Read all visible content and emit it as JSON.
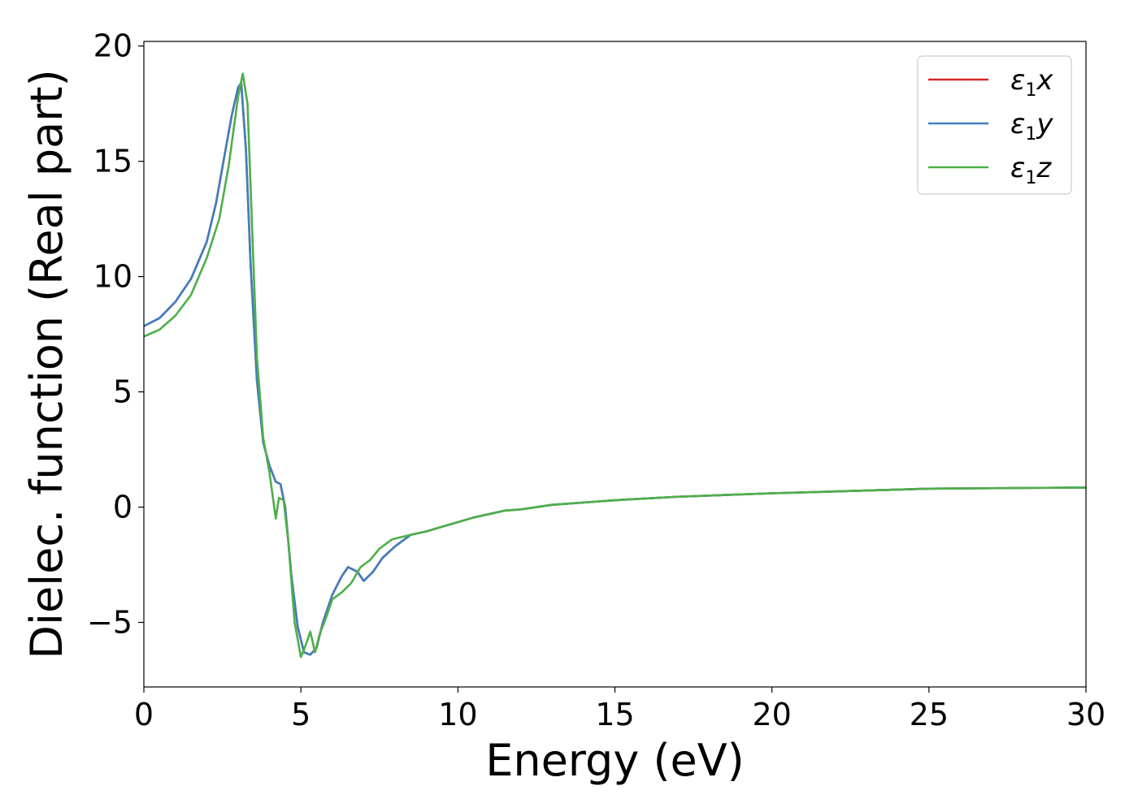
{
  "chart_data": {
    "type": "line",
    "xlabel": "Energy (eV)",
    "ylabel": "Dielec. function (Real part)",
    "xlim": [
      0,
      30
    ],
    "ylim": [
      -7.8,
      20.2
    ],
    "xticks": [
      0,
      5,
      10,
      15,
      20,
      25,
      30
    ],
    "xtick_labels": [
      "0",
      "5",
      "10",
      "15",
      "20",
      "25",
      "30"
    ],
    "yticks": [
      -5,
      0,
      5,
      10,
      15,
      20
    ],
    "ytick_labels": [
      "−5",
      "0",
      "5",
      "10",
      "15",
      "20"
    ],
    "grid": false,
    "legend_position": "top-right",
    "series": [
      {
        "key": "x",
        "legend_base": "ε",
        "legend_sub": "1",
        "legend_var": "x",
        "color": "#d62728",
        "x": [
          0,
          0.5,
          1,
          1.5,
          2,
          2.3,
          2.6,
          2.8,
          3.0,
          3.1,
          3.25,
          3.4,
          3.6,
          3.8,
          4.0,
          4.2,
          4.35,
          4.5,
          4.7,
          4.9,
          5.1,
          5.3,
          5.5,
          5.7,
          6.0,
          6.3,
          6.5,
          6.8,
          7.0,
          7.3,
          7.6,
          8.0,
          8.5,
          9.0,
          9.5,
          10,
          10.5,
          11,
          11.5,
          12,
          13,
          14,
          15,
          17,
          20,
          25,
          30
        ],
        "y": [
          7.85,
          8.2,
          8.9,
          9.9,
          11.5,
          13.2,
          15.5,
          17.0,
          18.2,
          18.4,
          15.5,
          10.5,
          5.5,
          2.8,
          1.8,
          1.1,
          1.0,
          0.0,
          -3.0,
          -5.2,
          -6.3,
          -6.4,
          -6.1,
          -5.0,
          -3.8,
          -3.0,
          -2.6,
          -2.8,
          -3.2,
          -2.8,
          -2.2,
          -1.7,
          -1.2,
          -1.05,
          -0.85,
          -0.65,
          -0.45,
          -0.3,
          -0.15,
          -0.1,
          0.1,
          0.2,
          0.3,
          0.45,
          0.6,
          0.8,
          0.85
        ]
      },
      {
        "key": "y",
        "legend_base": "ε",
        "legend_sub": "1",
        "legend_var": "y",
        "color": "#3f7fbf",
        "x": [
          0,
          0.5,
          1,
          1.5,
          2,
          2.3,
          2.6,
          2.8,
          3.0,
          3.1,
          3.25,
          3.4,
          3.6,
          3.8,
          4.0,
          4.2,
          4.35,
          4.5,
          4.7,
          4.9,
          5.1,
          5.3,
          5.5,
          5.7,
          6.0,
          6.3,
          6.5,
          6.8,
          7.0,
          7.3,
          7.6,
          8.0,
          8.5,
          9.0,
          9.5,
          10,
          10.5,
          11,
          11.5,
          12,
          13,
          14,
          15,
          17,
          20,
          25,
          30
        ],
        "y": [
          7.85,
          8.2,
          8.9,
          9.9,
          11.5,
          13.2,
          15.5,
          17.0,
          18.2,
          18.4,
          15.5,
          10.5,
          5.5,
          2.8,
          1.8,
          1.1,
          1.0,
          0.0,
          -3.0,
          -5.2,
          -6.3,
          -6.4,
          -6.1,
          -5.0,
          -3.8,
          -3.0,
          -2.6,
          -2.8,
          -3.2,
          -2.8,
          -2.2,
          -1.7,
          -1.2,
          -1.05,
          -0.85,
          -0.65,
          -0.45,
          -0.3,
          -0.15,
          -0.1,
          0.1,
          0.2,
          0.3,
          0.45,
          0.6,
          0.8,
          0.85
        ]
      },
      {
        "key": "z",
        "legend_base": "ε",
        "legend_sub": "1",
        "legend_var": "z",
        "color": "#4daf4a",
        "x": [
          0,
          0.5,
          1,
          1.5,
          2,
          2.4,
          2.7,
          3.0,
          3.15,
          3.3,
          3.45,
          3.6,
          3.8,
          4.0,
          4.2,
          4.3,
          4.45,
          4.6,
          4.8,
          5.0,
          5.15,
          5.3,
          5.45,
          5.6,
          5.8,
          6.0,
          6.3,
          6.6,
          6.9,
          7.2,
          7.5,
          7.9,
          8.5,
          9.0,
          9.5,
          10,
          10.5,
          11,
          11.5,
          12,
          13,
          14,
          15,
          17,
          20,
          25,
          30
        ],
        "y": [
          7.4,
          7.7,
          8.3,
          9.2,
          10.8,
          12.5,
          14.8,
          17.8,
          18.8,
          17.5,
          12.0,
          6.5,
          3.0,
          1.5,
          -0.5,
          0.4,
          0.3,
          -1.5,
          -5.0,
          -6.5,
          -6.0,
          -5.4,
          -6.3,
          -5.5,
          -4.8,
          -4.0,
          -3.7,
          -3.3,
          -2.6,
          -2.3,
          -1.8,
          -1.4,
          -1.2,
          -1.05,
          -0.85,
          -0.65,
          -0.45,
          -0.3,
          -0.15,
          -0.1,
          0.1,
          0.2,
          0.3,
          0.45,
          0.6,
          0.8,
          0.85
        ]
      }
    ]
  }
}
